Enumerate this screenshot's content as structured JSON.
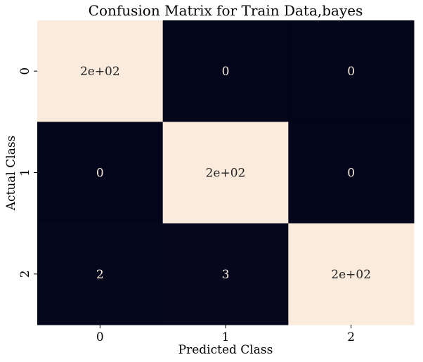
{
  "chart_data": {
    "type": "heatmap",
    "title": "Confusion Matrix for Train Data,bayes",
    "xlabel": "Predicted Class",
    "ylabel": "Actual Class",
    "x_categories": [
      "0",
      "1",
      "2"
    ],
    "y_categories": [
      "0",
      "1",
      "2"
    ],
    "values": [
      [
        200,
        0,
        0
      ],
      [
        0,
        200,
        0
      ],
      [
        2,
        3,
        200
      ]
    ],
    "cell_labels": [
      [
        "2e+02",
        "0",
        "0"
      ],
      [
        "0",
        "2e+02",
        "0"
      ],
      [
        "2",
        "3",
        "2e+02"
      ]
    ],
    "colorbar": false,
    "colors": {
      "low": "#03051a",
      "high": "#faebdd",
      "label_on_low": "#faebdd",
      "label_on_high": "#262626",
      "axis_text": "#000000"
    }
  }
}
